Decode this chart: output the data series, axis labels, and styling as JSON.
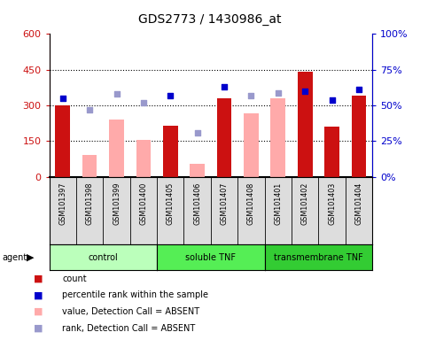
{
  "title": "GDS2773 / 1430986_at",
  "samples": [
    "GSM101397",
    "GSM101398",
    "GSM101399",
    "GSM101400",
    "GSM101405",
    "GSM101406",
    "GSM101407",
    "GSM101408",
    "GSM101401",
    "GSM101402",
    "GSM101403",
    "GSM101404"
  ],
  "groups": [
    {
      "label": "control",
      "color": "#bbffbb",
      "start": 0,
      "end": 4
    },
    {
      "label": "soluble TNF",
      "color": "#55ee55",
      "start": 4,
      "end": 8
    },
    {
      "label": "transmembrane TNF",
      "color": "#33cc33",
      "start": 8,
      "end": 12
    }
  ],
  "count_values": [
    300,
    null,
    null,
    null,
    215,
    null,
    330,
    null,
    null,
    440,
    210,
    340
  ],
  "absent_values": [
    null,
    90,
    240,
    155,
    null,
    55,
    null,
    265,
    330,
    null,
    null,
    null
  ],
  "pct_rank_values": [
    55,
    null,
    null,
    null,
    57,
    null,
    63,
    null,
    null,
    60,
    54,
    61
  ],
  "absent_rank_values": [
    null,
    47,
    58,
    52,
    null,
    31,
    null,
    57,
    59,
    null,
    null,
    null
  ],
  "ylim": [
    0,
    600
  ],
  "yticks": [
    0,
    150,
    300,
    450,
    600
  ],
  "ytick_labels": [
    "0",
    "150",
    "300",
    "450",
    "600"
  ],
  "y2lim": [
    0,
    100
  ],
  "y2ticks": [
    0,
    25,
    50,
    75,
    100
  ],
  "y2tick_labels": [
    "0%",
    "25%",
    "50%",
    "75%",
    "100%"
  ],
  "count_color": "#cc1111",
  "absent_bar_color": "#ffaaaa",
  "pct_rank_color": "#0000cc",
  "absent_rank_color": "#9999cc",
  "bg_color": "#ffffff",
  "plot_bg": "#ffffff",
  "label_fontsize": 8,
  "title_fontsize": 10,
  "legend_items": [
    {
      "color": "#cc1111",
      "label": "count"
    },
    {
      "color": "#0000cc",
      "label": "percentile rank within the sample"
    },
    {
      "color": "#ffaaaa",
      "label": "value, Detection Call = ABSENT"
    },
    {
      "color": "#9999cc",
      "label": "rank, Detection Call = ABSENT"
    }
  ]
}
